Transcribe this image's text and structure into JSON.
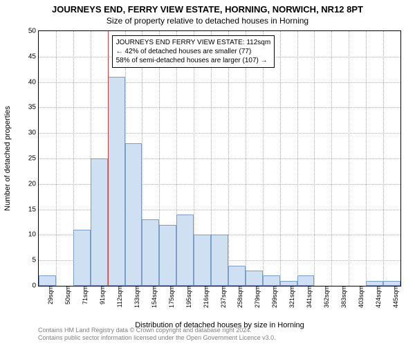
{
  "title": "JOURNEYS END, FERRY VIEW ESTATE, HORNING, NORWICH, NR12 8PT",
  "subtitle": "Size of property relative to detached houses in Horning",
  "chart": {
    "type": "histogram",
    "ylabel": "Number of detached properties",
    "xlabel": "Distribution of detached houses by size in Horning",
    "ylim": [
      0,
      50
    ],
    "ytick_step": 5,
    "bar_fill": "#cfe0f3",
    "bar_stroke": "#7a9ec8",
    "grid_color": "#b0b0b0",
    "background": "#ffffff",
    "marker_color": "#d04040",
    "marker_x_index": 4,
    "categories": [
      "29sqm",
      "50sqm",
      "71sqm",
      "91sqm",
      "112sqm",
      "133sqm",
      "154sqm",
      "175sqm",
      "195sqm",
      "216sqm",
      "237sqm",
      "258sqm",
      "279sqm",
      "299sqm",
      "321sqm",
      "341sqm",
      "362sqm",
      "383sqm",
      "403sqm",
      "424sqm",
      "445sqm"
    ],
    "values": [
      2,
      0,
      11,
      25,
      41,
      28,
      13,
      12,
      14,
      10,
      10,
      4,
      3,
      2,
      1,
      2,
      0,
      0,
      0,
      1,
      1
    ],
    "annotation": {
      "line1": "JOURNEYS END FERRY VIEW ESTATE: 112sqm",
      "line2": "← 42% of detached houses are smaller (77)",
      "line3": "58% of semi-detached houses are larger (107) →"
    }
  },
  "footer": {
    "line1": "Contains HM Land Registry data © Crown copyright and database right 2024.",
    "line2": "Contains public sector information licensed under the Open Government Licence v3.0."
  }
}
